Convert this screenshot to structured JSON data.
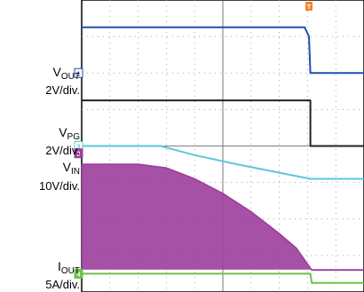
{
  "chart_data": {
    "type": "line",
    "title": "",
    "grid": true,
    "grid_divisions": {
      "horizontal": 10,
      "vertical": 8
    },
    "trigger_marker": "T",
    "x": {
      "label": "",
      "range": [
        0,
        10
      ],
      "units": "div"
    },
    "channels": [
      {
        "id": "ch1",
        "marker": "1",
        "name": "V",
        "sub": "OUT",
        "scale": "2V/div.",
        "color": "#1f4fb0",
        "points": [
          [
            0,
            7.25
          ],
          [
            7.9,
            7.25
          ],
          [
            8.05,
            7.0
          ],
          [
            8.1,
            6.0
          ],
          [
            10,
            6.0
          ]
        ]
      },
      {
        "id": "ch1_trace2",
        "marker": "",
        "name": "",
        "sub": "",
        "scale": "",
        "color": "#222222",
        "points": [
          [
            0,
            5.25
          ],
          [
            8.1,
            5.25
          ],
          [
            8.1,
            4.0
          ],
          [
            10,
            4.0
          ]
        ]
      },
      {
        "id": "ch3",
        "marker": "3",
        "name": "V",
        "sub": "PG",
        "scale": "2V/div.",
        "color": "#5bc8d8",
        "points": [
          [
            0,
            4.0
          ],
          [
            2.8,
            4.0
          ],
          [
            4.0,
            3.75
          ],
          [
            5.5,
            3.5
          ],
          [
            8.1,
            3.1
          ],
          [
            10,
            3.1
          ]
        ]
      },
      {
        "id": "ch2",
        "marker": "2",
        "name": "V",
        "sub": "IN",
        "scale": "10V/div.",
        "color": "#9c3e9c",
        "points": [
          [
            0,
            3.5
          ],
          [
            2.0,
            3.5
          ],
          [
            3.0,
            3.4
          ],
          [
            4.0,
            3.1
          ],
          [
            5.0,
            2.7
          ],
          [
            6.0,
            2.2
          ],
          [
            7.0,
            1.6
          ],
          [
            7.6,
            1.2
          ],
          [
            8.15,
            0.6
          ],
          [
            10,
            0.6
          ]
        ]
      },
      {
        "id": "ch4",
        "marker": "4",
        "name": "I",
        "sub": "OUT",
        "scale": "5A/div.",
        "color": "#6cc24a",
        "points": [
          [
            0,
            0.5
          ],
          [
            8.1,
            0.5
          ],
          [
            8.15,
            0.25
          ],
          [
            10,
            0.25
          ]
        ]
      }
    ],
    "y": {
      "label": "",
      "range": [
        0,
        8
      ],
      "units": "div"
    }
  }
}
